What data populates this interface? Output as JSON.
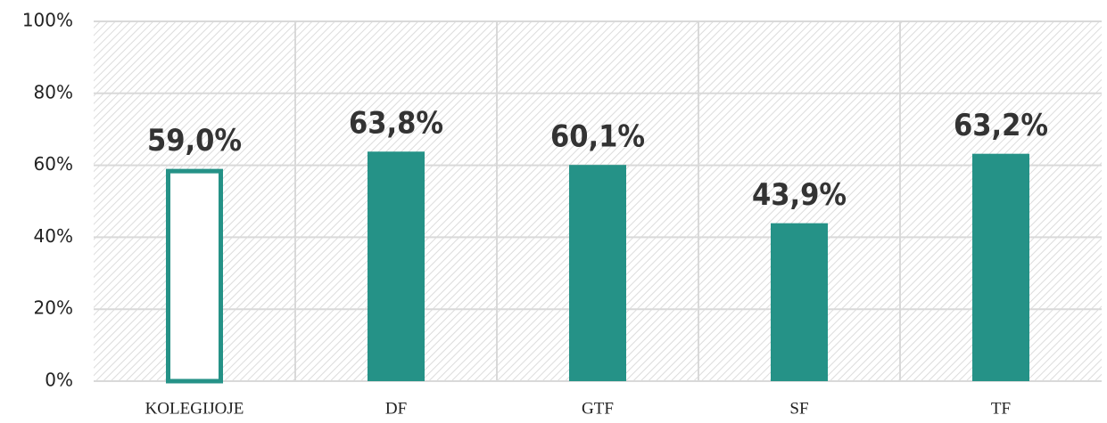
{
  "chart_data": {
    "type": "bar",
    "categories": [
      "KOLEGIJOJE",
      "DF",
      "GTF",
      "SF",
      "TF"
    ],
    "values": [
      59.0,
      63.8,
      60.1,
      43.9,
      63.2
    ],
    "value_labels": [
      "59,0%",
      "63,8%",
      "60,1%",
      "43,9%",
      "63,2%"
    ],
    "colors": [
      "#ffffff",
      "#259287",
      "#259287",
      "#259287",
      "#259287"
    ],
    "edge_color": "#259287",
    "ylim": [
      0,
      100
    ],
    "yticks": [
      {
        "value": 0,
        "label": "0%"
      },
      {
        "value": 20,
        "label": "20%"
      },
      {
        "value": 40,
        "label": "40%"
      },
      {
        "value": 60,
        "label": "60%"
      },
      {
        "value": 80,
        "label": "80%"
      },
      {
        "value": 100,
        "label": "100%"
      }
    ],
    "grid": true
  }
}
